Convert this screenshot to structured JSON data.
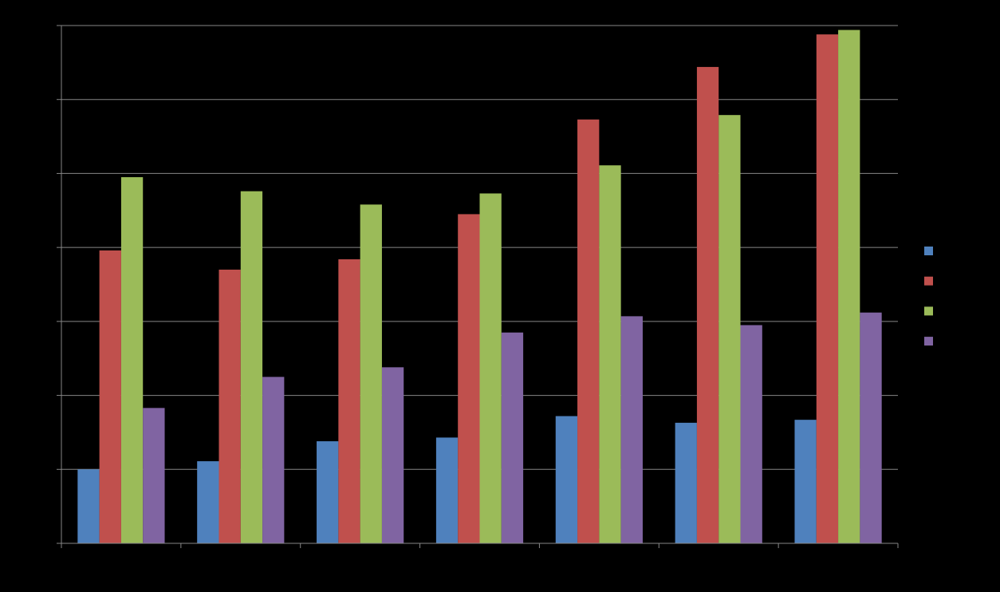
{
  "chart_data": {
    "type": "bar",
    "title": "",
    "xlabel": "",
    "ylabel": "",
    "categories": [
      "",
      "",
      "",
      "",
      "",
      "",
      ""
    ],
    "ylim": [
      0,
      7
    ],
    "yticks": [
      0,
      1,
      2,
      3,
      4,
      5,
      6,
      7
    ],
    "grid": true,
    "legend_position": "right",
    "series": [
      {
        "color": "#4F81BD",
        "values": [
          1.0,
          1.11,
          1.38,
          1.43,
          1.72,
          1.63,
          1.67
        ]
      },
      {
        "color": "#C0504D",
        "values": [
          3.96,
          3.7,
          3.84,
          4.45,
          5.73,
          6.44,
          6.88
        ]
      },
      {
        "color": "#9BBB59",
        "values": [
          4.95,
          4.76,
          4.58,
          4.73,
          5.11,
          5.79,
          6.94
        ]
      },
      {
        "color": "#8064A2",
        "values": [
          1.83,
          2.25,
          2.38,
          2.85,
          3.07,
          2.95,
          3.12
        ]
      }
    ]
  }
}
